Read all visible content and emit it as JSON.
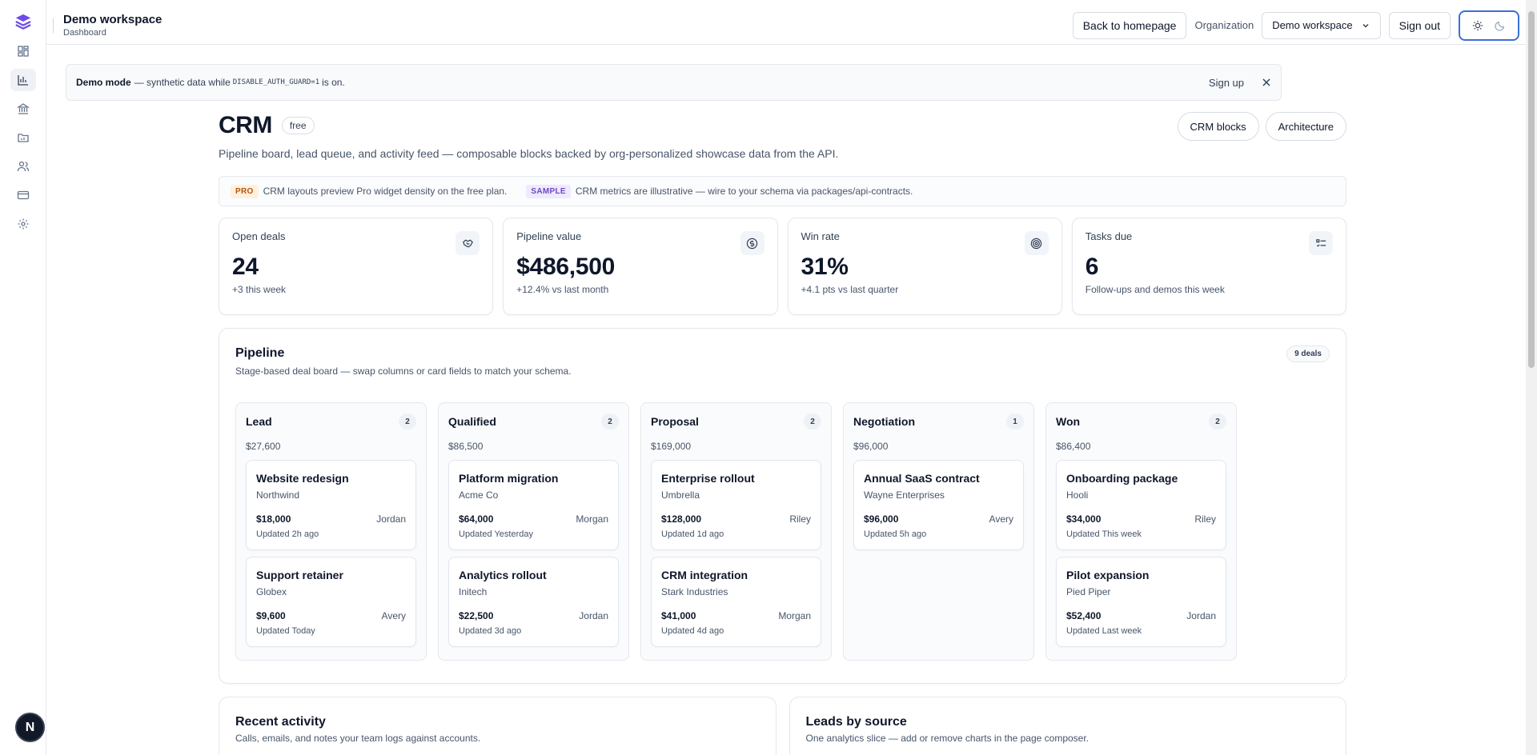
{
  "workspace": {
    "title": "Demo workspace",
    "subtitle": "Dashboard"
  },
  "topbar": {
    "back_label": "Back to homepage",
    "org_label": "Organization",
    "org_value": "Demo workspace",
    "signout_label": "Sign out"
  },
  "banner": {
    "mode": "Demo mode",
    "text_a": "— synthetic data while",
    "code": "DISABLE_AUTH_GUARD=1",
    "text_b": "is on.",
    "signup": "Sign up"
  },
  "page": {
    "title": "CRM",
    "plan_badge": "free",
    "description": "Pipeline board, lead queue, and activity feed — composable blocks backed by org-personalized showcase data from the API.",
    "actions": [
      "CRM blocks",
      "Architecture"
    ]
  },
  "notice": {
    "pro_tag": "PRO",
    "pro_text": "CRM layouts preview Pro widget density on the free plan.",
    "sample_tag": "SAMPLE",
    "sample_text": "CRM metrics are illustrative — wire to your schema via packages/api-contracts."
  },
  "kpis": [
    {
      "label": "Open deals",
      "value": "24",
      "sub": "+3 this week",
      "icon": "handshake-icon"
    },
    {
      "label": "Pipeline value",
      "value": "$486,500",
      "sub": "+12.4% vs last month",
      "icon": "dollar-circle-icon"
    },
    {
      "label": "Win rate",
      "value": "31%",
      "sub": "+4.1 pts vs last quarter",
      "icon": "target-icon"
    },
    {
      "label": "Tasks due",
      "value": "6",
      "sub": "Follow-ups and demos this week",
      "icon": "checklist-icon"
    }
  ],
  "pipeline": {
    "title": "Pipeline",
    "subtitle": "Stage-based deal board — swap columns or card fields to match your schema.",
    "count": "9 deals",
    "columns": [
      {
        "name": "Lead",
        "count": "2",
        "total": "$27,600",
        "cards": [
          {
            "title": "Website redesign",
            "company": "Northwind",
            "amount": "$18,000",
            "owner": "Jordan",
            "updated": "Updated 2h ago"
          },
          {
            "title": "Support retainer",
            "company": "Globex",
            "amount": "$9,600",
            "owner": "Avery",
            "updated": "Updated Today"
          }
        ]
      },
      {
        "name": "Qualified",
        "count": "2",
        "total": "$86,500",
        "cards": [
          {
            "title": "Platform migration",
            "company": "Acme Co",
            "amount": "$64,000",
            "owner": "Morgan",
            "updated": "Updated Yesterday"
          },
          {
            "title": "Analytics rollout",
            "company": "Initech",
            "amount": "$22,500",
            "owner": "Jordan",
            "updated": "Updated 3d ago"
          }
        ]
      },
      {
        "name": "Proposal",
        "count": "2",
        "total": "$169,000",
        "cards": [
          {
            "title": "Enterprise rollout",
            "company": "Umbrella",
            "amount": "$128,000",
            "owner": "Riley",
            "updated": "Updated 1d ago"
          },
          {
            "title": "CRM integration",
            "company": "Stark Industries",
            "amount": "$41,000",
            "owner": "Morgan",
            "updated": "Updated 4d ago"
          }
        ]
      },
      {
        "name": "Negotiation",
        "count": "1",
        "total": "$96,000",
        "cards": [
          {
            "title": "Annual SaaS contract",
            "company": "Wayne Enterprises",
            "amount": "$96,000",
            "owner": "Avery",
            "updated": "Updated 5h ago"
          }
        ]
      },
      {
        "name": "Won",
        "count": "2",
        "total": "$86,400",
        "cards": [
          {
            "title": "Onboarding package",
            "company": "Hooli",
            "amount": "$34,000",
            "owner": "Riley",
            "updated": "Updated This week"
          },
          {
            "title": "Pilot expansion",
            "company": "Pied Piper",
            "amount": "$52,400",
            "owner": "Jordan",
            "updated": "Updated Last week"
          }
        ]
      }
    ]
  },
  "activity": {
    "title": "Recent activity",
    "subtitle": "Calls, emails, and notes your team logs against accounts."
  },
  "leads": {
    "title": "Leads by source",
    "subtitle": "One analytics slice — add or remove charts in the page composer."
  },
  "avatar": "N",
  "colors": {
    "accent": "#3b6fd6",
    "logo": "#6d4ae8"
  }
}
